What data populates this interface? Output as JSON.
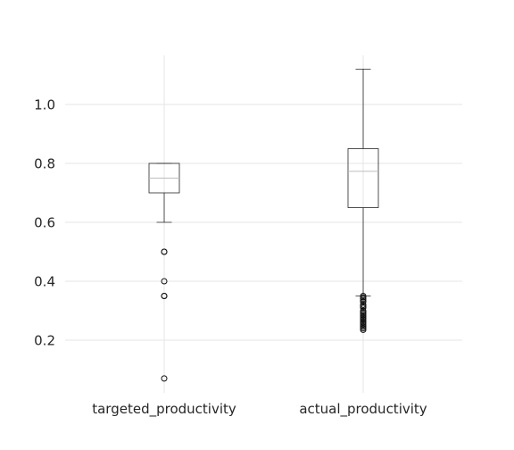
{
  "chart_data": {
    "type": "box",
    "title": "",
    "xlabel": "",
    "ylabel": "",
    "ylim": [
      0.02,
      1.17
    ],
    "grid": true,
    "y_ticks": [
      0.2,
      0.4,
      0.6,
      0.8,
      1.0
    ],
    "y_tick_labels": [
      "0.2",
      "0.4",
      "0.6",
      "0.8",
      "1.0"
    ],
    "categories": [
      "targeted_productivity",
      "actual_productivity"
    ],
    "boxes": [
      {
        "label": "targeted_productivity",
        "whisker_low": 0.6,
        "q1": 0.7,
        "median": 0.75,
        "q3": 0.8,
        "whisker_high": 0.8,
        "fliers": [
          0.5,
          0.5,
          0.4,
          0.35,
          0.35,
          0.07
        ]
      },
      {
        "label": "actual_productivity",
        "whisker_low": 0.35,
        "q1": 0.65,
        "median": 0.773,
        "q3": 0.85,
        "whisker_high": 1.12,
        "fliers": [
          0.35,
          0.345,
          0.34,
          0.335,
          0.33,
          0.32,
          0.315,
          0.31,
          0.3,
          0.295,
          0.29,
          0.285,
          0.28,
          0.275,
          0.27,
          0.265,
          0.26,
          0.255,
          0.25,
          0.245,
          0.24,
          0.235
        ]
      }
    ]
  }
}
